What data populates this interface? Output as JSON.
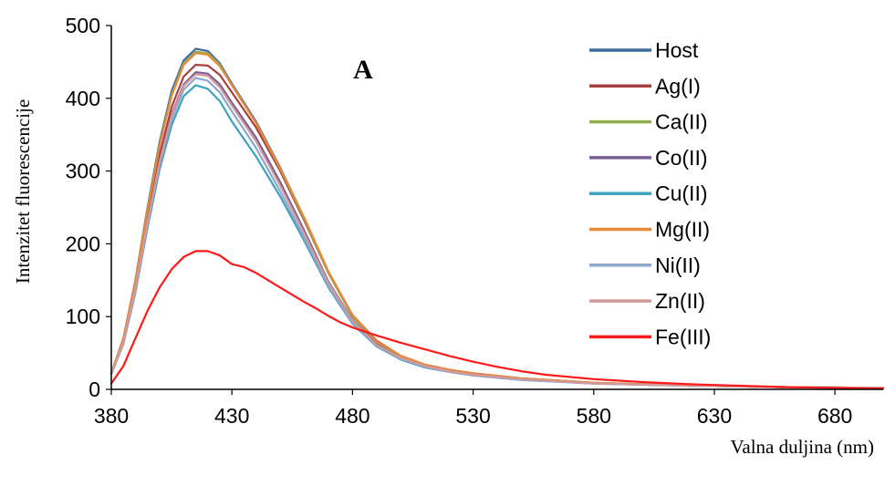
{
  "chart_data": {
    "type": "line",
    "title": "",
    "panel_label": "A",
    "xlabel": "Valna duljina (nm)",
    "ylabel": "Intenzitet fluorescencije",
    "xlim": [
      380,
      700
    ],
    "ylim": [
      0,
      500
    ],
    "xticks": [
      380,
      430,
      480,
      530,
      580,
      630,
      680
    ],
    "yticks": [
      0,
      100,
      200,
      300,
      400,
      500
    ],
    "grid": false,
    "legend_position": "right",
    "series": [
      {
        "name": "Host",
        "color": "#3f6a9e",
        "x": [
          380,
          385,
          390,
          395,
          400,
          405,
          410,
          415,
          420,
          425,
          430,
          440,
          450,
          460,
          470,
          480,
          490,
          500,
          510,
          520,
          530,
          550,
          580,
          620,
          660,
          700
        ],
        "y": [
          22,
          70,
          150,
          250,
          340,
          410,
          452,
          468,
          465,
          448,
          420,
          368,
          305,
          235,
          160,
          100,
          65,
          45,
          33,
          26,
          21,
          15,
          9,
          5,
          3,
          2
        ]
      },
      {
        "name": "Ag(I)",
        "color": "#a84040",
        "x": [
          380,
          385,
          390,
          395,
          400,
          405,
          410,
          415,
          420,
          425,
          430,
          440,
          450,
          460,
          470,
          480,
          490,
          500,
          510,
          520,
          530,
          550,
          580,
          620,
          660,
          700
        ],
        "y": [
          21,
          66,
          143,
          236,
          322,
          388,
          430,
          446,
          445,
          432,
          408,
          360,
          300,
          232,
          160,
          102,
          67,
          46,
          34,
          27,
          22,
          15,
          9,
          5,
          3,
          2
        ]
      },
      {
        "name": "Ca(II)",
        "color": "#8fb04a",
        "x": [
          380,
          385,
          390,
          395,
          400,
          405,
          410,
          415,
          420,
          425,
          430,
          440,
          450,
          460,
          470,
          480,
          490,
          500,
          510,
          520,
          530,
          550,
          580,
          620,
          660,
          700
        ],
        "y": [
          22,
          69,
          148,
          247,
          336,
          405,
          448,
          464,
          462,
          446,
          418,
          366,
          303,
          234,
          160,
          100,
          65,
          45,
          33,
          26,
          21,
          15,
          9,
          5,
          3,
          2
        ]
      },
      {
        "name": "Co(II)",
        "color": "#7a5e96",
        "x": [
          380,
          385,
          390,
          395,
          400,
          405,
          410,
          415,
          420,
          425,
          430,
          440,
          450,
          460,
          470,
          480,
          490,
          500,
          510,
          520,
          530,
          550,
          580,
          620,
          660,
          700
        ],
        "y": [
          21,
          64,
          139,
          230,
          313,
          378,
          419,
          436,
          434,
          419,
          394,
          346,
          285,
          218,
          148,
          95,
          62,
          43,
          32,
          25,
          20,
          14,
          8,
          5,
          3,
          2
        ]
      },
      {
        "name": "Cu(II)",
        "color": "#3ea3c0",
        "x": [
          380,
          385,
          390,
          395,
          400,
          405,
          410,
          415,
          420,
          425,
          430,
          440,
          450,
          460,
          470,
          480,
          490,
          500,
          510,
          520,
          530,
          550,
          580,
          620,
          660,
          700
        ],
        "y": [
          21,
          62,
          133,
          222,
          302,
          363,
          403,
          418,
          413,
          396,
          368,
          320,
          265,
          204,
          140,
          90,
          59,
          41,
          30,
          24,
          19,
          13,
          8,
          5,
          3,
          2
        ]
      },
      {
        "name": "Mg(II)",
        "color": "#e6893a",
        "x": [
          380,
          385,
          390,
          395,
          400,
          405,
          410,
          415,
          420,
          425,
          430,
          440,
          450,
          460,
          470,
          480,
          490,
          500,
          510,
          520,
          530,
          550,
          580,
          620,
          660,
          700
        ],
        "y": [
          22,
          69,
          148,
          246,
          335,
          403,
          446,
          462,
          460,
          444,
          418,
          366,
          304,
          236,
          162,
          102,
          66,
          46,
          34,
          27,
          22,
          15,
          9,
          5,
          3,
          2
        ]
      },
      {
        "name": "Ni(II)",
        "color": "#8ea6cc",
        "x": [
          380,
          385,
          390,
          395,
          400,
          405,
          410,
          415,
          420,
          425,
          430,
          440,
          450,
          460,
          470,
          480,
          490,
          500,
          510,
          520,
          530,
          550,
          580,
          620,
          660,
          700
        ],
        "y": [
          21,
          63,
          136,
          226,
          308,
          371,
          412,
          428,
          424,
          408,
          382,
          332,
          272,
          208,
          142,
          91,
          60,
          42,
          31,
          24,
          19,
          13,
          8,
          5,
          3,
          2
        ]
      },
      {
        "name": "Zn(II)",
        "color": "#d49a9a",
        "x": [
          380,
          385,
          390,
          395,
          400,
          405,
          410,
          415,
          420,
          425,
          430,
          440,
          450,
          460,
          470,
          480,
          490,
          500,
          510,
          520,
          530,
          550,
          580,
          620,
          660,
          700
        ],
        "y": [
          21,
          64,
          138,
          229,
          312,
          376,
          417,
          433,
          431,
          415,
          390,
          341,
          280,
          214,
          146,
          94,
          61,
          43,
          32,
          25,
          20,
          14,
          8,
          5,
          3,
          2
        ]
      },
      {
        "name": "Fe(III)",
        "color": "#ff1a1a",
        "x": [
          380,
          385,
          390,
          395,
          400,
          405,
          410,
          415,
          420,
          425,
          430,
          435,
          440,
          445,
          450,
          455,
          460,
          465,
          470,
          475,
          480,
          490,
          500,
          510,
          520,
          530,
          540,
          550,
          560,
          580,
          600,
          620,
          640,
          660,
          680,
          700
        ],
        "y": [
          8,
          32,
          70,
          108,
          140,
          165,
          182,
          190,
          190,
          184,
          172,
          168,
          160,
          150,
          140,
          130,
          120,
          111,
          101,
          92,
          85,
          74,
          64,
          55,
          46,
          38,
          31,
          25,
          20,
          14,
          10,
          7,
          5,
          3,
          2,
          1
        ]
      }
    ]
  }
}
